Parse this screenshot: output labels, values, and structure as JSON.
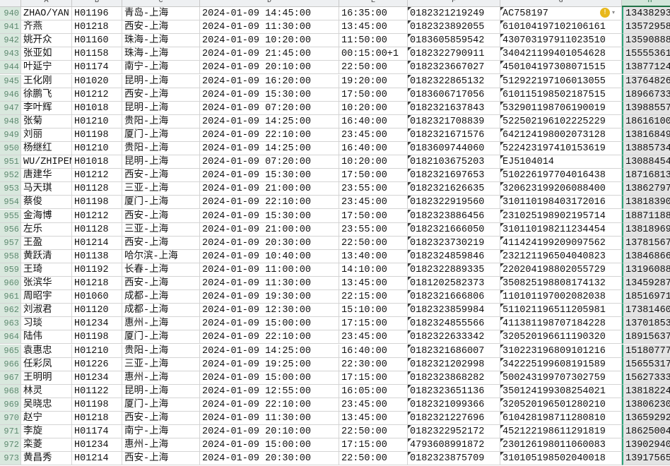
{
  "columns": [
    "A",
    "B",
    "C",
    "D",
    "E",
    "F",
    "G",
    "H"
  ],
  "selected_column": "H",
  "warning_icon": "exclamation-circle-icon",
  "rows": [
    [
      "940",
      "ZHAO/YAN",
      "H01196",
      "青岛-上海",
      "2024-01-09 14:45:00",
      "16:35:00",
      "0182321219249",
      "AC758197",
      "13438293"
    ],
    [
      "941",
      "齐燕",
      "H01218",
      "西安-上海",
      "2024-01-09 11:30:00",
      "13:45:00",
      "0182323892055",
      "610104197102106161",
      "13572958"
    ],
    [
      "942",
      "姚开众",
      "H01160",
      "珠海-上海",
      "2024-01-09 10:20:00",
      "11:50:00",
      "0183605859542",
      "430703197911023510",
      "13590888"
    ],
    [
      "943",
      "张亚如",
      "H01158",
      "珠海-上海",
      "2024-01-09 21:45:00",
      "00:15:00+1",
      "0182322790911",
      "340421199401054628",
      "15555361"
    ],
    [
      "944",
      "叶延宁",
      "H01174",
      "南宁-上海",
      "2024-01-09 20:10:00",
      "22:50:00",
      "0182323667027",
      "450104197308071515",
      "13877124"
    ],
    [
      "945",
      "王化刚",
      "H01020",
      "昆明-上海",
      "2024-01-09 16:20:00",
      "19:20:00",
      "0182322865132",
      "512922197106013055",
      "13764826"
    ],
    [
      "946",
      "徐鹏飞",
      "H01212",
      "西安-上海",
      "2024-01-09 15:30:00",
      "17:50:00",
      "0183606717056",
      "610115198502187515",
      "18966733"
    ],
    [
      "947",
      "李叶辉",
      "H01018",
      "昆明-上海",
      "2024-01-09 07:20:00",
      "10:20:00",
      "0182321637843",
      "532901198706190019",
      "13988557"
    ],
    [
      "948",
      "张菊",
      "H01210",
      "贵阳-上海",
      "2024-01-09 14:25:00",
      "16:40:00",
      "0182321708839",
      "522502196102225229",
      "18616100"
    ],
    [
      "949",
      "刘丽",
      "H01198",
      "厦门-上海",
      "2024-01-09 22:10:00",
      "23:45:00",
      "0182321671576",
      "642124198002073128",
      "13816849"
    ],
    [
      "950",
      "杨继红",
      "H01210",
      "贵阳-上海",
      "2024-01-09 14:25:00",
      "16:40:00",
      "0183609744060",
      "522423197410153619",
      "13885734"
    ],
    [
      "951",
      "WU/ZHIPEN",
      "H01018",
      "昆明-上海",
      "2024-01-09 07:20:00",
      "10:20:00",
      "0182103675203",
      "EJ5104014",
      "13088454"
    ],
    [
      "952",
      "唐建华",
      "H01212",
      "西安-上海",
      "2024-01-09 15:30:00",
      "17:50:00",
      "0182321697653",
      "510226197704016438",
      "18716813"
    ],
    [
      "953",
      "马天琪",
      "H01128",
      "三亚-上海",
      "2024-01-09 21:00:00",
      "23:55:00",
      "0182321626635",
      "320623199206088400",
      "13862797"
    ],
    [
      "954",
      "蔡俊",
      "H01198",
      "厦门-上海",
      "2024-01-09 22:10:00",
      "23:45:00",
      "0182322919560",
      "310110198403172016",
      "13818390"
    ],
    [
      "955",
      "金海博",
      "H01212",
      "西安-上海",
      "2024-01-09 15:30:00",
      "17:50:00",
      "0182323886456",
      "231025198902195714",
      "18871188"
    ],
    [
      "956",
      "左乐",
      "H01128",
      "三亚-上海",
      "2024-01-09 21:00:00",
      "23:55:00",
      "0182321666050",
      "310110198211234454",
      "13818969"
    ],
    [
      "957",
      "王盈",
      "H01214",
      "西安-上海",
      "2024-01-09 20:30:00",
      "22:50:00",
      "0182323730219",
      "411424199209097562",
      "13781567"
    ],
    [
      "958",
      "黄跃清",
      "H01138",
      "哈尔滨-上海",
      "2024-01-09 10:40:00",
      "13:40:00",
      "0182324859846",
      "232121196504040823",
      "13846866"
    ],
    [
      "959",
      "王琦",
      "H01192",
      "长春-上海",
      "2024-01-09 11:00:00",
      "14:10:00",
      "0182322889335",
      "220204198802055729",
      "13196088"
    ],
    [
      "960",
      "张滨华",
      "H01218",
      "西安-上海",
      "2024-01-09 11:30:00",
      "13:45:00",
      "0181202582373",
      "350825198808174132",
      "13459287"
    ],
    [
      "961",
      "周昭宇",
      "H01060",
      "成都-上海",
      "2024-01-09 19:30:00",
      "22:15:00",
      "0182321666806",
      "110101197002082038",
      "18516971"
    ],
    [
      "962",
      "刘淑君",
      "H01120",
      "成都-上海",
      "2024-01-09 12:30:00",
      "15:10:00",
      "0182323859984",
      "511021196511205981",
      "17381460"
    ],
    [
      "963",
      "习琰",
      "H01234",
      "惠州-上海",
      "2024-01-09 15:00:00",
      "17:15:00",
      "0182324855566",
      "411381198707184228",
      "13701853"
    ],
    [
      "964",
      "陆伟",
      "H01198",
      "厦门-上海",
      "2024-01-09 22:10:00",
      "23:45:00",
      "0182322633342",
      "320520196611190320",
      "18915637"
    ],
    [
      "965",
      "袁惠忠",
      "H01210",
      "贵阳-上海",
      "2024-01-09 14:25:00",
      "16:40:00",
      "0182321686007",
      "310223196809101216",
      "15180777"
    ],
    [
      "966",
      "任彩凤",
      "H01226",
      "三亚-上海",
      "2024-01-09 19:25:00",
      "22:30:00",
      "0182321202998",
      "342225199608191589",
      "15655317"
    ],
    [
      "967",
      "王明明",
      "H01234",
      "惠州-上海",
      "2024-01-09 15:00:00",
      "17:15:00",
      "0182323868282",
      "500243199707302759",
      "15627333"
    ],
    [
      "968",
      "林灵",
      "H01122",
      "昆明-上海",
      "2024-01-09 12:55:00",
      "16:05:00",
      "0182323651136",
      "350124199308254021",
      "13818224"
    ],
    [
      "969",
      "吴晓忠",
      "H01198",
      "厦门-上海",
      "2024-01-09 22:10:00",
      "23:45:00",
      "0182321099366",
      "320520196501280210",
      "13806230"
    ],
    [
      "970",
      "赵宁",
      "H01218",
      "西安-上海",
      "2024-01-09 11:30:00",
      "13:45:00",
      "0182321227696",
      "610428198711280810",
      "13659292"
    ],
    [
      "971",
      "李旋",
      "H01174",
      "南宁-上海",
      "2024-01-09 20:10:00",
      "22:50:00",
      "0182322952172",
      "452122198611291819",
      "18625004"
    ],
    [
      "972",
      "栾菱",
      "H01234",
      "惠州-上海",
      "2024-01-09 15:00:00",
      "17:15:00",
      "4793608991872",
      "230126198011060083",
      "13902940"
    ],
    [
      "973",
      "黄昌秀",
      "H01214",
      "西安-上海",
      "2024-01-09 20:30:00",
      "22:50:00",
      "0182323875709",
      "310105198502040018",
      "13917565"
    ]
  ]
}
